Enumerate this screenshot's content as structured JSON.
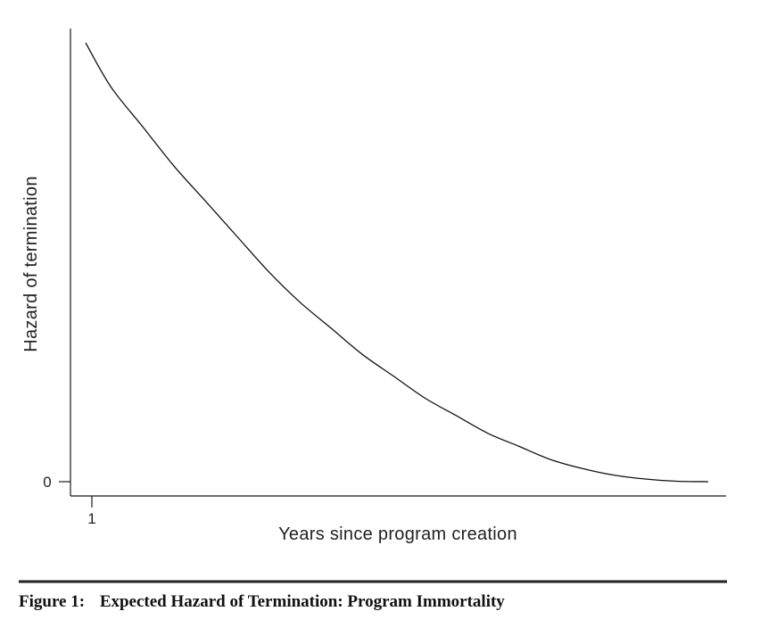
{
  "chart_data": {
    "type": "line",
    "title": "",
    "xlabel": "Years since program creation",
    "ylabel": "Hazard of termination",
    "x_ticks": [
      "1"
    ],
    "y_ticks": [
      "0"
    ],
    "grid": false,
    "legend": "none",
    "series": [
      {
        "x": [
          1,
          5,
          10,
          15,
          20,
          25,
          30,
          35,
          40,
          45,
          50,
          55,
          60,
          65,
          70,
          75,
          80,
          85,
          90,
          95,
          100
        ],
        "values": [
          1.0,
          0.9,
          0.81,
          0.72,
          0.64,
          0.56,
          0.48,
          0.41,
          0.35,
          0.29,
          0.24,
          0.19,
          0.15,
          0.11,
          0.08,
          0.05,
          0.03,
          0.015,
          0.006,
          0.001,
          0.0
        ]
      }
    ],
    "xlim": [
      0,
      100
    ],
    "ylim": [
      0,
      1.03
    ]
  },
  "caption": {
    "label": "Figure 1:",
    "title": "Expected Hazard of Termination: Program Immortality"
  }
}
